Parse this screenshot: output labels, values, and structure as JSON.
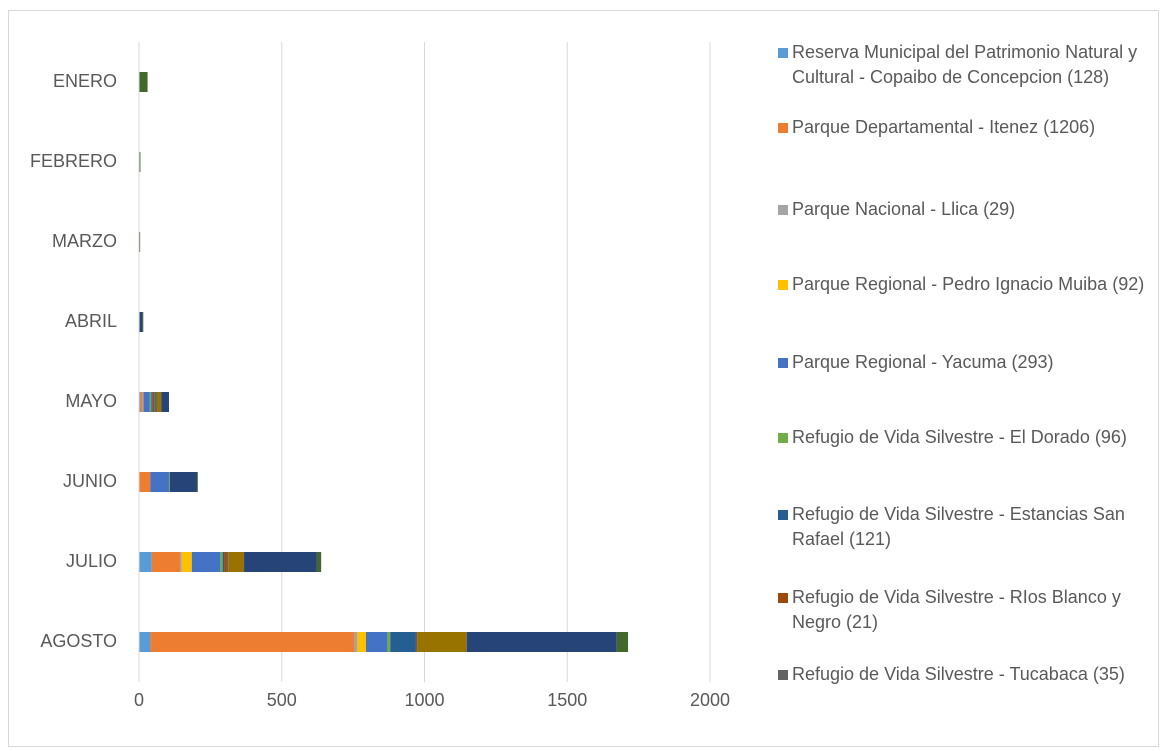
{
  "chart_data": {
    "type": "stacked_bar_horizontal",
    "categories": [
      "ENERO",
      "FEBRERO",
      "MARZO",
      "ABRIL",
      "MAYO",
      "JUNIO",
      "JULIO",
      "AGOSTO"
    ],
    "series": [
      {
        "name": "Reserva Municipal del Patrimonio Natural y Cultural - Copaibo de Concepcion (128)",
        "color": "#5b9bd5",
        "values": [
          0,
          0,
          0,
          0,
          5,
          0,
          45,
          40
        ]
      },
      {
        "name": "Parque Departamental - Itenez (1206)",
        "color": "#ed7d31",
        "values": [
          0,
          0,
          0,
          0,
          8,
          40,
          100,
          715
        ]
      },
      {
        "name": "Parque Nacional - Llica (29)",
        "color": "#a5a5a5",
        "values": [
          0,
          0,
          0,
          0,
          3,
          0,
          5,
          10
        ]
      },
      {
        "name": "Parque Regional - Pedro Ignacio Muiba (92)",
        "color": "#ffc000",
        "values": [
          0,
          0,
          0,
          0,
          0,
          0,
          35,
          30
        ]
      },
      {
        "name": "Parque Regional - Yacuma (293)",
        "color": "#4472c4",
        "values": [
          0,
          0,
          0,
          0,
          22,
          65,
          100,
          75
        ]
      },
      {
        "name": "Refugio de Vida Silvestre - El Dorado (96)",
        "color": "#70ad47",
        "values": [
          0,
          0,
          0,
          0,
          5,
          3,
          8,
          10
        ]
      },
      {
        "name": "Refugio de Vida Silvestre - Estancias San Rafael (121)",
        "color": "#255e91",
        "values": [
          0,
          0,
          0,
          0,
          5,
          0,
          5,
          90
        ]
      },
      {
        "name": "Refugio de Vida Silvestre - RIos Blanco y Negro (21)",
        "color": "#9e480e",
        "values": [
          0,
          0,
          0,
          0,
          5,
          0,
          10,
          2
        ]
      },
      {
        "name": "Refugio de Vida Silvestre - Tucabaca (35)",
        "color": "#636363",
        "values": [
          0,
          0,
          0,
          2,
          10,
          0,
          5,
          3
        ]
      },
      {
        "color": "#997300",
        "values": [
          0,
          2,
          0,
          0,
          15,
          0,
          55,
          173
        ]
      },
      {
        "color": "#264478",
        "values": [
          0,
          0,
          0,
          10,
          27,
          95,
          255,
          525
        ]
      },
      {
        "color": "#43682b",
        "values": [
          30,
          3,
          4,
          3,
          0,
          3,
          15,
          40
        ]
      }
    ],
    "xlim": [
      0,
      2000
    ],
    "xticks": [
      0,
      500,
      1000,
      1500,
      2000
    ],
    "grid": true
  }
}
